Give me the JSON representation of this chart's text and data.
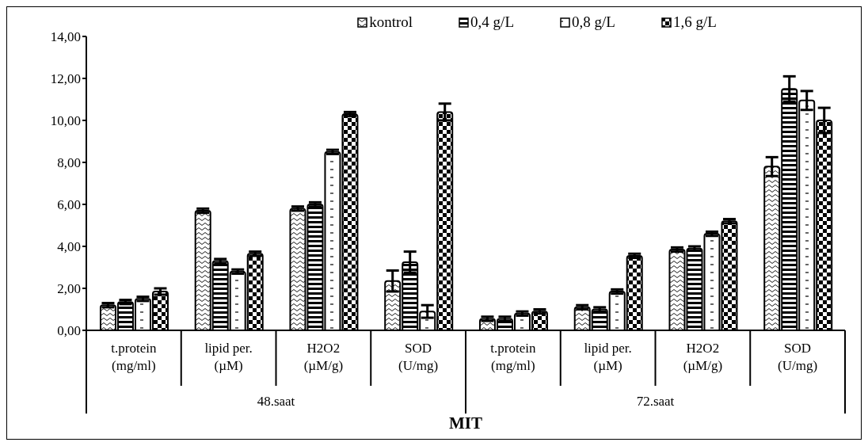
{
  "chart_data": {
    "type": "bar",
    "xlabel": "MIT",
    "categories": [
      "t.protein\n(mg/ml)",
      "lipid per.\n(µM)",
      "H2O2\n(µM/g)",
      "SOD\n(U/mg)",
      "t.protein\n(mg/ml)",
      "lipid per.\n(µM)",
      "H2O2\n(µM/g)",
      "SOD\n(U/mg)"
    ],
    "series": [
      {
        "name": "kontrol",
        "color": "#000000",
        "values": [
          1.2,
          5.7,
          5.8,
          2.35,
          0.55,
          1.1,
          3.85,
          7.8
        ],
        "errors": [
          0.1,
          0.1,
          0.1,
          0.5,
          0.1,
          0.1,
          0.1,
          0.45
        ]
      },
      {
        "name": "0,4 g/L",
        "color": "#000000",
        "values": [
          1.35,
          3.3,
          6.0,
          3.25,
          0.55,
          1.0,
          3.9,
          11.5
        ],
        "errors": [
          0.1,
          0.1,
          0.1,
          0.5,
          0.1,
          0.1,
          0.1,
          0.6
        ]
      },
      {
        "name": "0,8 g/L",
        "color": "#000000",
        "values": [
          1.5,
          2.8,
          8.5,
          0.9,
          0.8,
          1.85,
          4.6,
          10.95
        ],
        "errors": [
          0.1,
          0.1,
          0.1,
          0.3,
          0.1,
          0.1,
          0.1,
          0.45
        ]
      },
      {
        "name": "1,6 g/L",
        "color": "#000000",
        "values": [
          1.85,
          3.65,
          10.3,
          10.4,
          0.9,
          3.55,
          5.2,
          10.0
        ],
        "errors": [
          0.15,
          0.1,
          0.1,
          0.4,
          0.1,
          0.1,
          0.1,
          0.6
        ]
      }
    ],
    "ylim": [
      0,
      14
    ],
    "yticks": [
      {
        "value": 0,
        "label": "0,00"
      },
      {
        "value": 2,
        "label": "2,00"
      },
      {
        "value": 4,
        "label": "4,00"
      },
      {
        "value": 6,
        "label": "6,00"
      },
      {
        "value": 8,
        "label": "8,00"
      },
      {
        "value": 10,
        "label": "10,00"
      },
      {
        "value": 12,
        "label": "12,00"
      },
      {
        "value": 14,
        "label": "14,00"
      }
    ],
    "annotations": [
      "48.saat",
      "72.saat"
    ],
    "grid": false,
    "legend": "top"
  }
}
